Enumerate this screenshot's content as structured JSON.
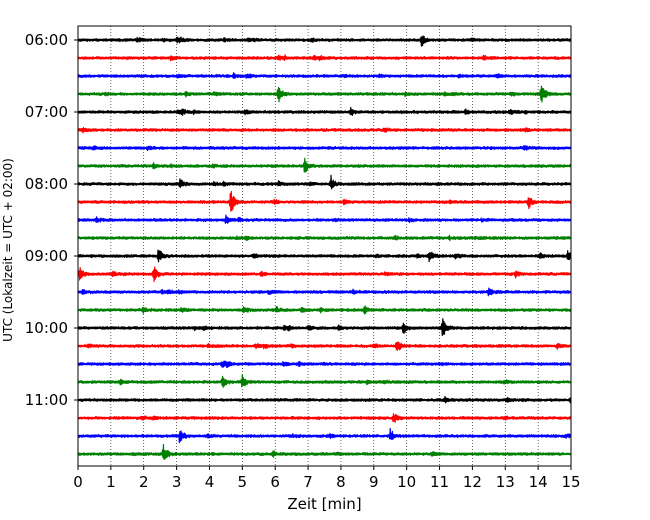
{
  "chart_data": {
    "type": "line",
    "title": "",
    "xlabel": "Zeit  [min]",
    "ylabel": "UTC (Lokalzeit = UTC + 02:00)",
    "xlim": [
      0,
      15
    ],
    "x_ticks": [
      "0",
      "1",
      "2",
      "3",
      "4",
      "5",
      "6",
      "7",
      "8",
      "9",
      "10",
      "11",
      "12",
      "13",
      "14",
      "15"
    ],
    "y_ticks": [
      "06:00",
      "07:00",
      "08:00",
      "09:00",
      "10:00",
      "11:00"
    ],
    "grid": "vertical dotted",
    "trace_interval_minutes": 15,
    "trace_start": "06:00",
    "trace_count": 24,
    "trace_colors": [
      "#000000",
      "#ff0000",
      "#0000ff",
      "#008000"
    ],
    "events": [
      {
        "trace": 0,
        "t": 10.45,
        "amp": 0.55
      },
      {
        "trace": 0,
        "t": 1.8,
        "amp": 0.2
      },
      {
        "trace": 0,
        "t": 3.0,
        "amp": 0.15
      },
      {
        "trace": 3,
        "t": 6.1,
        "amp": 0.75
      },
      {
        "trace": 3,
        "t": 14.1,
        "amp": 0.8
      },
      {
        "trace": 4,
        "t": 8.3,
        "amp": 0.3
      },
      {
        "trace": 7,
        "t": 6.9,
        "amp": 0.55
      },
      {
        "trace": 8,
        "t": 3.1,
        "amp": 0.45
      },
      {
        "trace": 8,
        "t": 7.7,
        "amp": 0.55
      },
      {
        "trace": 9,
        "t": 4.65,
        "amp": 0.8
      },
      {
        "trace": 9,
        "t": 13.7,
        "amp": 0.5
      },
      {
        "trace": 10,
        "t": 4.5,
        "amp": 0.3
      },
      {
        "trace": 12,
        "t": 2.45,
        "amp": 0.55
      },
      {
        "trace": 12,
        "t": 10.7,
        "amp": 0.45
      },
      {
        "trace": 12,
        "t": 14.9,
        "amp": 0.35
      },
      {
        "trace": 13,
        "t": 0.05,
        "amp": 0.5
      },
      {
        "trace": 13,
        "t": 2.3,
        "amp": 0.5
      },
      {
        "trace": 14,
        "t": 12.5,
        "amp": 0.3
      },
      {
        "trace": 15,
        "t": 8.7,
        "amp": 0.35
      },
      {
        "trace": 16,
        "t": 9.9,
        "amp": 0.4
      },
      {
        "trace": 16,
        "t": 11.1,
        "amp": 0.65
      },
      {
        "trace": 17,
        "t": 9.7,
        "amp": 0.5
      },
      {
        "trace": 19,
        "t": 4.4,
        "amp": 0.45
      },
      {
        "trace": 19,
        "t": 5.0,
        "amp": 0.45
      },
      {
        "trace": 19,
        "t": 1.3,
        "amp": 0.25
      },
      {
        "trace": 21,
        "t": 9.6,
        "amp": 0.45
      },
      {
        "trace": 22,
        "t": 3.1,
        "amp": 0.6
      },
      {
        "trace": 22,
        "t": 9.5,
        "amp": 0.5
      },
      {
        "trace": 23,
        "t": 2.6,
        "amp": 0.8
      }
    ]
  }
}
